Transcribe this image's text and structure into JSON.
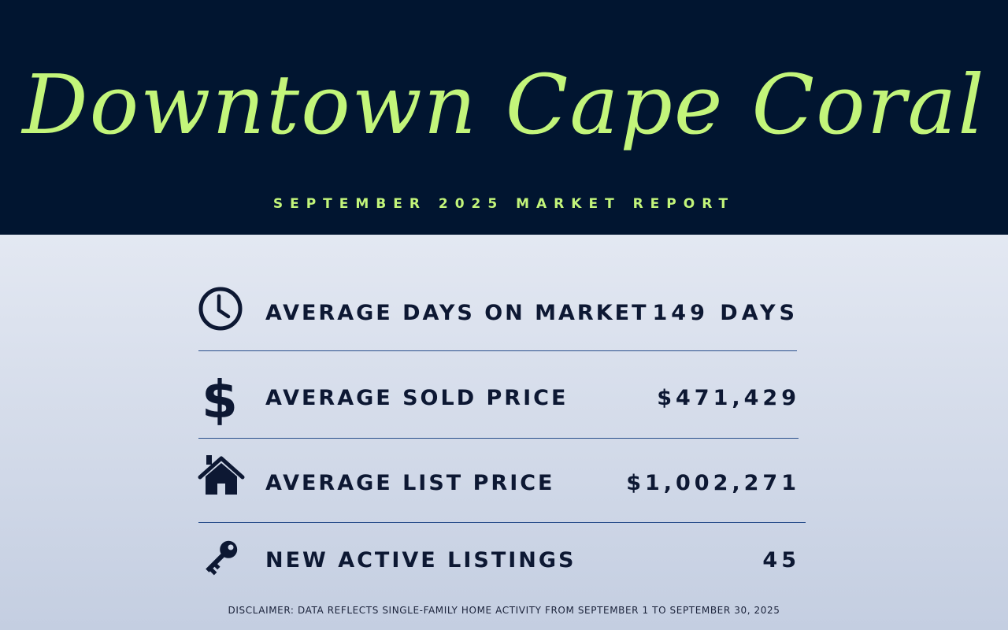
{
  "header": {
    "title": "Downtown Cape Coral",
    "subtitle": "SEPTEMBER 2025 MARKET REPORT"
  },
  "stats": [
    {
      "icon": "clock-icon",
      "label": "AVERAGE DAYS ON MARKET",
      "value": "149 DAYS"
    },
    {
      "icon": "dollar-sign-icon",
      "label": "AVERAGE SOLD PRICE",
      "value": "$471,429"
    },
    {
      "icon": "house-icon",
      "label": "AVERAGE LIST PRICE",
      "value": "$1,002,271"
    },
    {
      "icon": "key-icon",
      "label": "NEW ACTIVE LISTINGS",
      "value": "45"
    }
  ],
  "disclaimer": "DISCLAIMER: DATA REFLECTS SINGLE-FAMILY HOME ACTIVITY FROM SEPTEMBER 1 TO SEPTEMBER 30, 2025",
  "colors": {
    "header_bg": "#011530",
    "accent": "#c3f57a",
    "text_dark": "#0d1833",
    "divider": "#2a4f8c"
  }
}
